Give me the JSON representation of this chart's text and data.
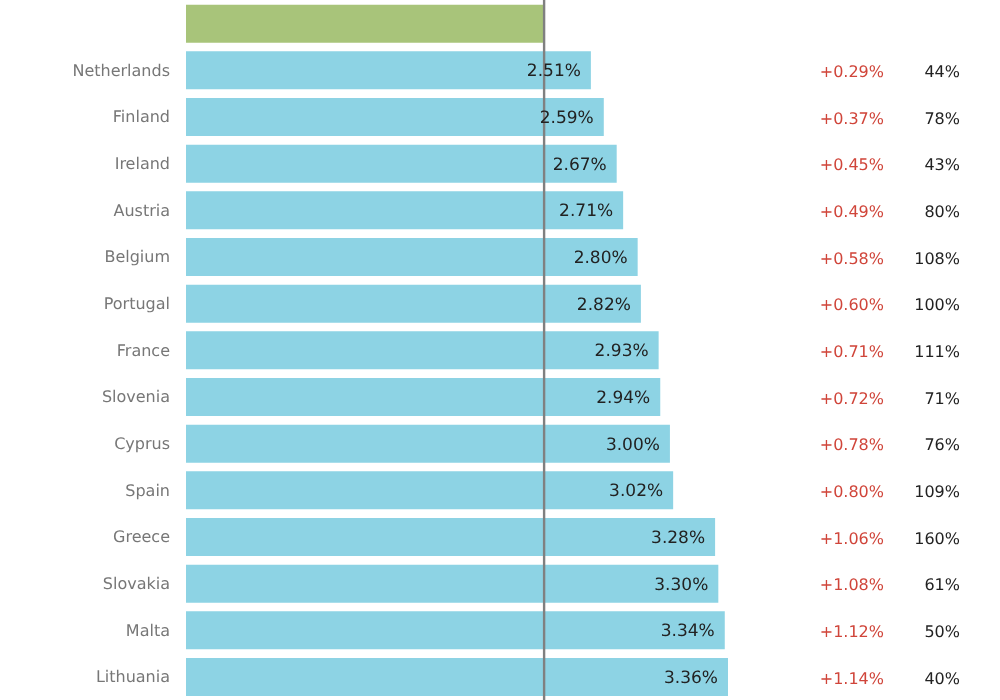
{
  "chart_data": {
    "type": "bar",
    "orientation": "horizontal",
    "categories": [
      null,
      "Netherlands",
      "Finland",
      "Ireland",
      "Austria",
      "Belgium",
      "Portugal",
      "France",
      "Slovenia",
      "Cyprus",
      "Spain",
      "Greece",
      "Slovakia",
      "Malta",
      "Lithuania"
    ],
    "values": [
      2.22,
      2.51,
      2.59,
      2.67,
      2.71,
      2.8,
      2.82,
      2.93,
      2.94,
      3.0,
      3.02,
      3.28,
      3.3,
      3.34,
      3.36
    ],
    "colors": [
      "#a8c47a",
      "#8dd3e4",
      "#8dd3e4",
      "#8dd3e4",
      "#8dd3e4",
      "#8dd3e4",
      "#8dd3e4",
      "#8dd3e4",
      "#8dd3e4",
      "#8dd3e4",
      "#8dd3e4",
      "#8dd3e4",
      "#8dd3e4",
      "#8dd3e4",
      "#8dd3e4"
    ],
    "value_labels": [
      null,
      "2.51%",
      "2.59%",
      "2.67%",
      "2.71%",
      "2.80%",
      "2.82%",
      "2.93%",
      "2.94%",
      "3.00%",
      "3.02%",
      "3.28%",
      "3.30%",
      "3.34%",
      "3.36%"
    ],
    "ref_lines": [
      {
        "axis": "x",
        "value": 2.22,
        "color": "#808080"
      }
    ],
    "annotations": [
      "+0.29%",
      "44%",
      "+0.37%",
      "78%",
      "+0.45%",
      "43%",
      "+0.49%",
      "80%",
      "+0.58%",
      "108%",
      "+0.60%",
      "100%",
      "+0.71%",
      "111%",
      "+0.72%",
      "71%",
      "+0.78%",
      "76%",
      "+0.80%",
      "109%",
      "+1.06%",
      "160%",
      "+1.08%",
      "61%",
      "+1.12%",
      "50%",
      "+1.14%",
      "40%"
    ]
  }
}
